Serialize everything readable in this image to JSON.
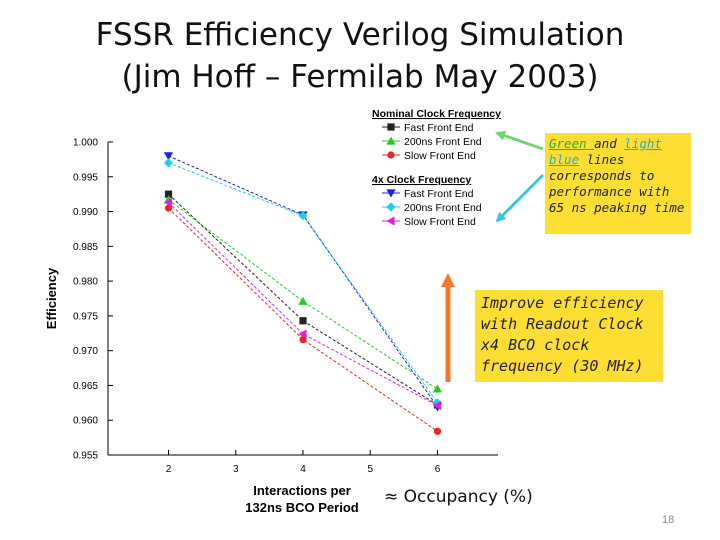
{
  "slide": {
    "title_line1": "FSSR Efficiency Verilog Simulation",
    "title_line2": "(Jim Hoff – Fermilab May 2003)",
    "note_green": {
      "part1": "Green ",
      "part2": "and ",
      "part3": "light blue",
      "part4": " lines corresponds to performance with 65 ns peaking time"
    },
    "note_orange": "Improve efficiency with Readout Clock x4 BCO clock frequency (30 MHz)",
    "occupancy_label": "≈ Occupancy (%)",
    "slide_number": "18"
  },
  "chart_data": {
    "type": "line",
    "x": [
      2,
      4,
      6
    ],
    "xlim": [
      1.1,
      6.9
    ],
    "xticks": [
      "2",
      "3",
      "4",
      "5",
      "6"
    ],
    "xlabel": "Interactions per 132ns BCO Period",
    "ylabel": "Efficiency",
    "ylim": [
      0.955,
      1.0
    ],
    "yticks": [
      "0.955",
      "0.960",
      "0.965",
      "0.970",
      "0.975",
      "0.980",
      "0.985",
      "0.990",
      "0.995",
      "1.000"
    ],
    "grid": false,
    "legend_groups": [
      {
        "title": "Nominal Clock Frequency",
        "series": [
          0,
          1,
          2
        ]
      },
      {
        "title": "4x Clock Frequency",
        "series": [
          3,
          4,
          5
        ]
      }
    ],
    "series": [
      {
        "name": "Fast Front End",
        "color": "#222222",
        "marker": "square",
        "values": [
          0.9925,
          0.9743,
          0.9622
        ]
      },
      {
        "name": "200ns Front End",
        "color": "#22cc22",
        "marker": "triangle-up",
        "values": [
          0.9917,
          0.9771,
          0.9645
        ]
      },
      {
        "name": "Slow Front End",
        "color": "#ee2222",
        "marker": "circle",
        "values": [
          0.9905,
          0.9716,
          0.9584
        ]
      },
      {
        "name": "Fast Front End",
        "color": "#1f1fe6",
        "marker": "triangle-down",
        "values": [
          0.998,
          0.9895,
          0.9619
        ]
      },
      {
        "name": "200ns Front End",
        "color": "#22ccee",
        "marker": "diamond",
        "values": [
          0.997,
          0.9894,
          0.9625
        ]
      },
      {
        "name": "Slow Front End",
        "color": "#dd22dd",
        "marker": "triangle-left",
        "values": [
          0.9913,
          0.9724,
          0.9621
        ]
      }
    ]
  }
}
